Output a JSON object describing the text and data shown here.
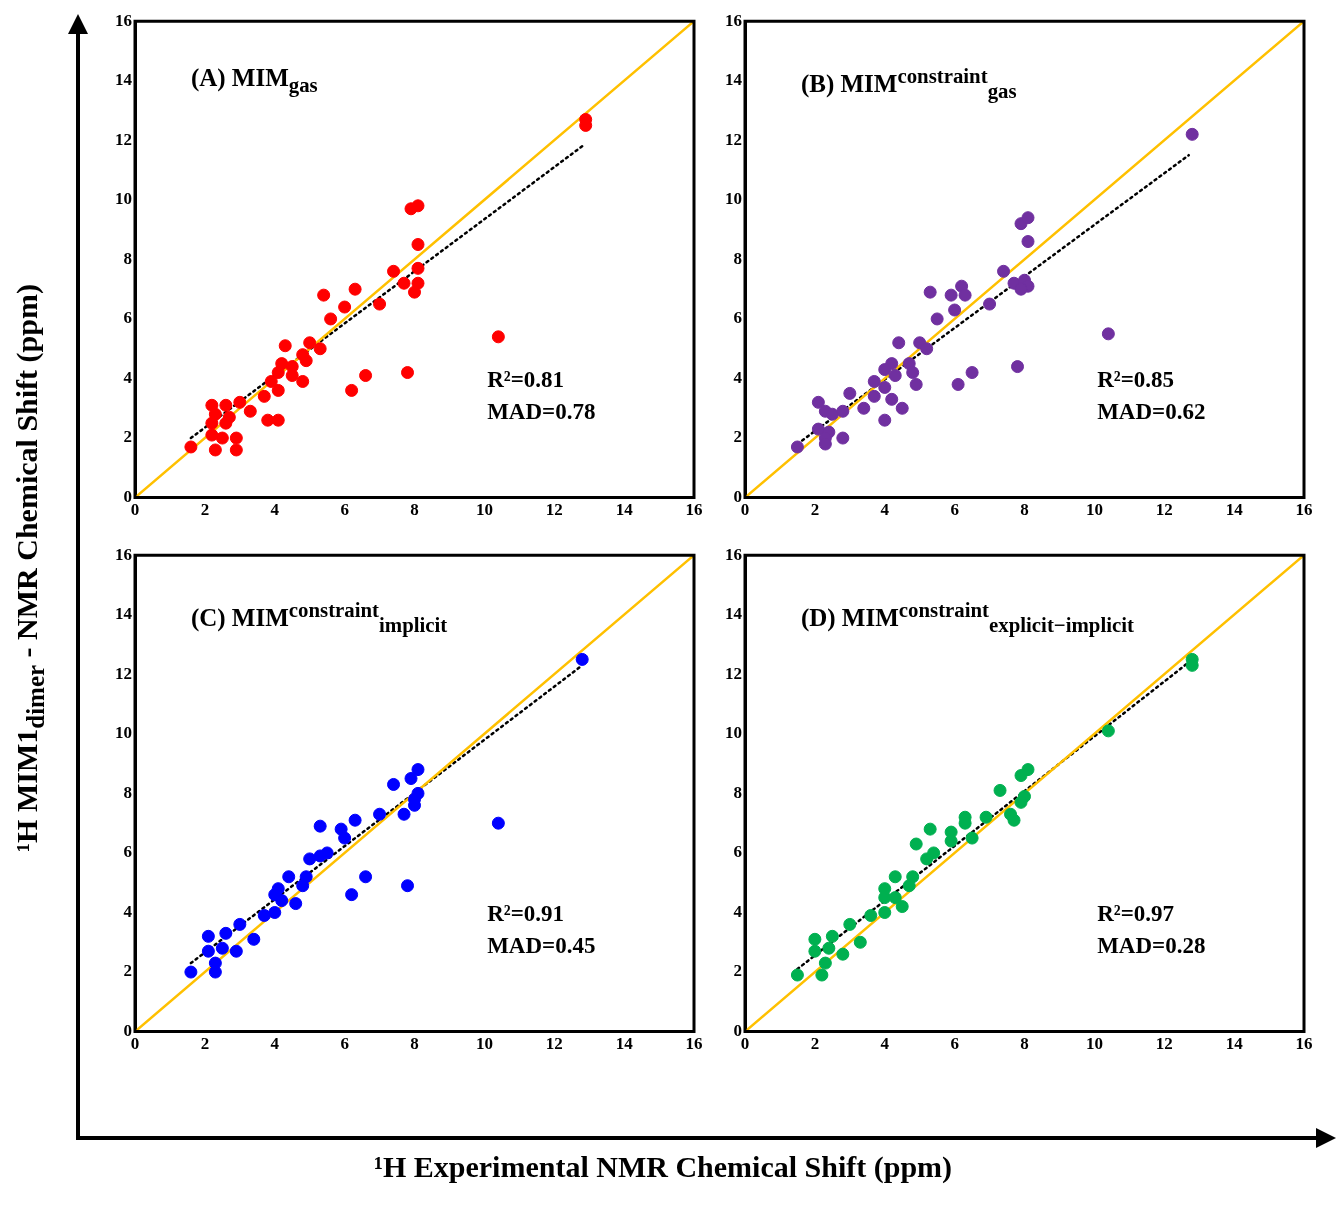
{
  "chart_data": [
    {
      "type": "scatter",
      "title": "(A) MIM$_{gas}$",
      "xlabel": "¹H Experimental NMR Chemical Shift (ppm)",
      "ylabel": "¹H MIM1$_{dimer}$ - NMR Chemical Shift (ppm)",
      "xlim": [
        0,
        16
      ],
      "ylim": [
        0,
        16
      ],
      "xticks": [
        0,
        2,
        4,
        6,
        8,
        10,
        12,
        14,
        16
      ],
      "yticks": [
        0,
        2,
        4,
        6,
        8,
        10,
        12,
        14,
        16
      ],
      "marker": "circle",
      "annotations": [
        "R²=0.81",
        "MAD=0.78"
      ],
      "series": [
        {
          "color": "#ff0000",
          "x": [
            12.9,
            12.9,
            7.9,
            8.1,
            8.1,
            8.1,
            7.4,
            7.7,
            8.1,
            8.0,
            7.0,
            6.3,
            5.4,
            6.0,
            5.6,
            10.4,
            4.3,
            5.0,
            5.3,
            4.8,
            4.9,
            4.2,
            4.5,
            4.1,
            4.5,
            4.8,
            6.6,
            7.8,
            6.2,
            3.9,
            4.1,
            3.7,
            3.0,
            3.3,
            3.8,
            4.1,
            2.2,
            2.6,
            2.3,
            2.7,
            2.2,
            2.6,
            2.2,
            2.5,
            2.9,
            1.6,
            2.3,
            2.9
          ],
          "values": [
            12.7,
            12.5,
            9.7,
            9.8,
            8.5,
            7.7,
            7.6,
            7.2,
            7.2,
            6.9,
            6.5,
            7.0,
            6.8,
            6.4,
            6.0,
            5.4,
            5.1,
            5.2,
            5.0,
            4.8,
            4.6,
            4.5,
            4.4,
            4.2,
            4.1,
            3.9,
            4.1,
            4.2,
            3.6,
            3.9,
            3.6,
            3.4,
            3.2,
            2.9,
            2.6,
            2.6,
            3.1,
            3.1,
            2.8,
            2.7,
            2.5,
            2.5,
            2.1,
            2.0,
            2.0,
            1.7,
            1.6,
            1.6
          ]
        },
        {
          "type": "line",
          "color": "#ffc000",
          "x": [
            0,
            16
          ],
          "values": [
            0,
            16
          ],
          "line_style": "solid",
          "marker": "none"
        },
        {
          "type": "line",
          "color": "#000000",
          "x": [
            1.6,
            12.8
          ],
          "values": [
            2.0,
            11.8
          ],
          "line_style": "dotted",
          "marker": "none"
        }
      ]
    },
    {
      "type": "scatter",
      "title": "(B) MIM$^{constraint}$$_{gas}$",
      "xlim": [
        0,
        16
      ],
      "ylim": [
        0,
        16
      ],
      "xticks": [
        0,
        2,
        4,
        6,
        8,
        10,
        12,
        14,
        16
      ],
      "yticks": [
        0,
        2,
        4,
        6,
        8,
        10,
        12,
        14,
        16
      ],
      "marker": "circle",
      "annotations": [
        "R²=0.85",
        "MAD=0.62"
      ],
      "series": [
        {
          "color": "#7030a0",
          "x": [
            12.8,
            7.9,
            8.1,
            8.1,
            7.4,
            7.7,
            8.0,
            8.1,
            7.9,
            7.0,
            6.2,
            5.9,
            6.3,
            5.3,
            6.0,
            5.5,
            10.4,
            4.4,
            5.0,
            5.2,
            4.7,
            4.2,
            4.0,
            4.3,
            4.8,
            4.9,
            6.5,
            7.8,
            6.1,
            3.7,
            4.0,
            3.7,
            4.2,
            3.0,
            3.4,
            4.5,
            4.0,
            2.1,
            2.3,
            2.5,
            2.8,
            2.1,
            2.4,
            2.3,
            2.8,
            2.3,
            1.5
          ],
          "values": [
            12.2,
            9.2,
            9.4,
            8.6,
            7.6,
            7.2,
            7.3,
            7.1,
            7.0,
            6.5,
            7.1,
            6.8,
            6.8,
            6.9,
            6.3,
            6.0,
            5.5,
            5.2,
            5.2,
            5.0,
            4.5,
            4.5,
            4.3,
            4.1,
            4.2,
            3.8,
            4.2,
            4.4,
            3.8,
            3.9,
            3.7,
            3.4,
            3.3,
            3.5,
            3.0,
            3.0,
            2.6,
            3.2,
            2.9,
            2.8,
            2.9,
            2.3,
            2.2,
            2.0,
            2.0,
            1.8,
            1.7
          ]
        },
        {
          "type": "line",
          "color": "#ffc000",
          "x": [
            0,
            16
          ],
          "values": [
            0,
            16
          ],
          "line_style": "solid",
          "marker": "none"
        },
        {
          "type": "line",
          "color": "#000000",
          "x": [
            1.5,
            12.7
          ],
          "values": [
            1.8,
            11.5
          ],
          "line_style": "dotted",
          "marker": "none"
        }
      ]
    },
    {
      "type": "scatter",
      "title": "(C) MIM$^{constraint}$$_{implicit}$",
      "xlim": [
        0,
        16
      ],
      "ylim": [
        0,
        16
      ],
      "xticks": [
        0,
        2,
        4,
        6,
        8,
        10,
        12,
        14,
        16
      ],
      "yticks": [
        0,
        2,
        4,
        6,
        8,
        10,
        12,
        14,
        16
      ],
      "marker": "circle",
      "annotations": [
        "R²=0.91",
        "MAD=0.45"
      ],
      "series": [
        {
          "color": "#0000ff",
          "x": [
            12.8,
            8.1,
            7.9,
            7.4,
            8.1,
            8.0,
            8.0,
            7.7,
            7.0,
            6.3,
            5.9,
            6.0,
            5.3,
            10.4,
            5.5,
            5.3,
            5.0,
            4.4,
            4.9,
            4.8,
            4.1,
            4.0,
            4.2,
            4.6,
            6.6,
            7.8,
            6.2,
            4.0,
            3.7,
            3.0,
            3.4,
            2.1,
            2.6,
            2.1,
            2.5,
            2.9,
            2.3,
            2.3,
            1.6
          ],
          "values": [
            12.5,
            8.8,
            8.5,
            8.3,
            8.0,
            7.8,
            7.6,
            7.3,
            7.3,
            7.1,
            6.8,
            6.5,
            6.9,
            7.0,
            6.0,
            5.9,
            5.8,
            5.2,
            5.2,
            4.9,
            4.8,
            4.6,
            4.4,
            4.3,
            5.2,
            4.9,
            4.6,
            4.0,
            3.9,
            3.6,
            3.1,
            3.2,
            3.3,
            2.7,
            2.8,
            2.7,
            2.3,
            2.0,
            2.0
          ]
        },
        {
          "type": "line",
          "color": "#ffc000",
          "x": [
            0,
            16
          ],
          "values": [
            0,
            16
          ],
          "line_style": "solid",
          "marker": "none"
        },
        {
          "type": "line",
          "color": "#000000",
          "x": [
            1.6,
            12.8
          ],
          "values": [
            2.3,
            12.3
          ],
          "line_style": "dotted",
          "marker": "none"
        }
      ]
    },
    {
      "type": "scatter",
      "title": "(D) MIM$^{constraint}$$_{explicit−implicit}$",
      "xlim": [
        0,
        16
      ],
      "ylim": [
        0,
        16
      ],
      "xticks": [
        0,
        2,
        4,
        6,
        8,
        10,
        12,
        14,
        16
      ],
      "yticks": [
        0,
        2,
        4,
        6,
        8,
        10,
        12,
        14,
        16
      ],
      "marker": "circle",
      "annotations": [
        "R²=0.97",
        "MAD=0.28"
      ],
      "series": [
        {
          "color": "#00b050",
          "x": [
            12.8,
            12.8,
            10.4,
            8.1,
            7.9,
            7.3,
            8.0,
            7.9,
            7.6,
            7.7,
            6.9,
            6.3,
            6.3,
            5.9,
            5.9,
            5.3,
            6.5,
            4.9,
            5.4,
            5.2,
            4.3,
            4.8,
            4.7,
            4.0,
            4.0,
            4.3,
            4.5,
            4.0,
            3.6,
            3.0,
            3.3,
            2.0,
            2.5,
            2.0,
            2.4,
            2.8,
            2.3,
            2.2,
            1.5
          ],
          "values": [
            12.5,
            12.3,
            10.1,
            8.8,
            8.6,
            8.1,
            7.9,
            7.7,
            7.3,
            7.1,
            7.2,
            7.2,
            7.0,
            6.7,
            6.4,
            6.8,
            6.5,
            6.3,
            6.0,
            5.8,
            5.2,
            5.2,
            4.9,
            4.8,
            4.5,
            4.5,
            4.2,
            4.0,
            3.9,
            3.6,
            3.0,
            3.1,
            3.2,
            2.7,
            2.8,
            2.6,
            2.3,
            1.9,
            1.9
          ]
        },
        {
          "type": "line",
          "color": "#ffc000",
          "x": [
            0,
            16
          ],
          "values": [
            0,
            16
          ],
          "line_style": "solid",
          "marker": "none"
        },
        {
          "type": "line",
          "color": "#000000",
          "x": [
            1.5,
            12.7
          ],
          "values": [
            2.1,
            12.4
          ],
          "line_style": "dotted",
          "marker": "none"
        }
      ]
    }
  ]
}
